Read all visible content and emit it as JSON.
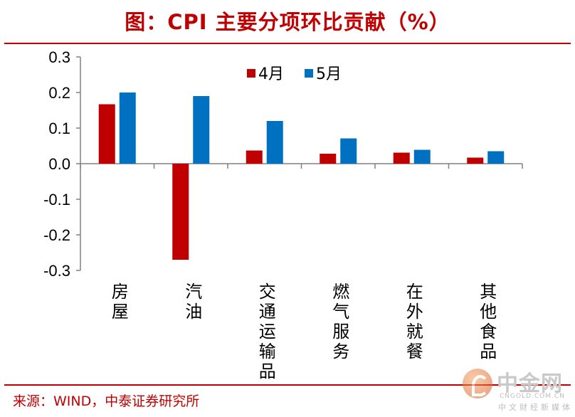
{
  "title": "图：CPI 主要分项环比贡献（%）",
  "source": "来源：WIND，中泰证券研究所",
  "watermark": {
    "name": "中金网",
    "url": "CNGOLD.COM.CN",
    "sub": "中文财经新媒体"
  },
  "colors": {
    "series1": "#c00000",
    "series2": "#0070c0",
    "title": "#c00000"
  },
  "chart_data": {
    "type": "bar",
    "title": "CPI 主要分项环比贡献（%）",
    "categories": [
      "房屋",
      "汽油",
      "交通运输品",
      "燃气服务",
      "在外就餐",
      "其他食品"
    ],
    "series": [
      {
        "name": "4月",
        "values": [
          0.167,
          -0.27,
          0.037,
          0.028,
          0.031,
          0.017
        ]
      },
      {
        "name": "5月",
        "values": [
          0.2,
          0.19,
          0.12,
          0.071,
          0.039,
          0.035
        ]
      }
    ],
    "ylim": [
      -0.3,
      0.3
    ],
    "yticks": [
      "-0.3",
      "-0.2",
      "-0.1",
      "0.0",
      "0.1",
      "0.2",
      "0.3"
    ],
    "xlabel": "",
    "ylabel": "",
    "legend": "top-center"
  }
}
